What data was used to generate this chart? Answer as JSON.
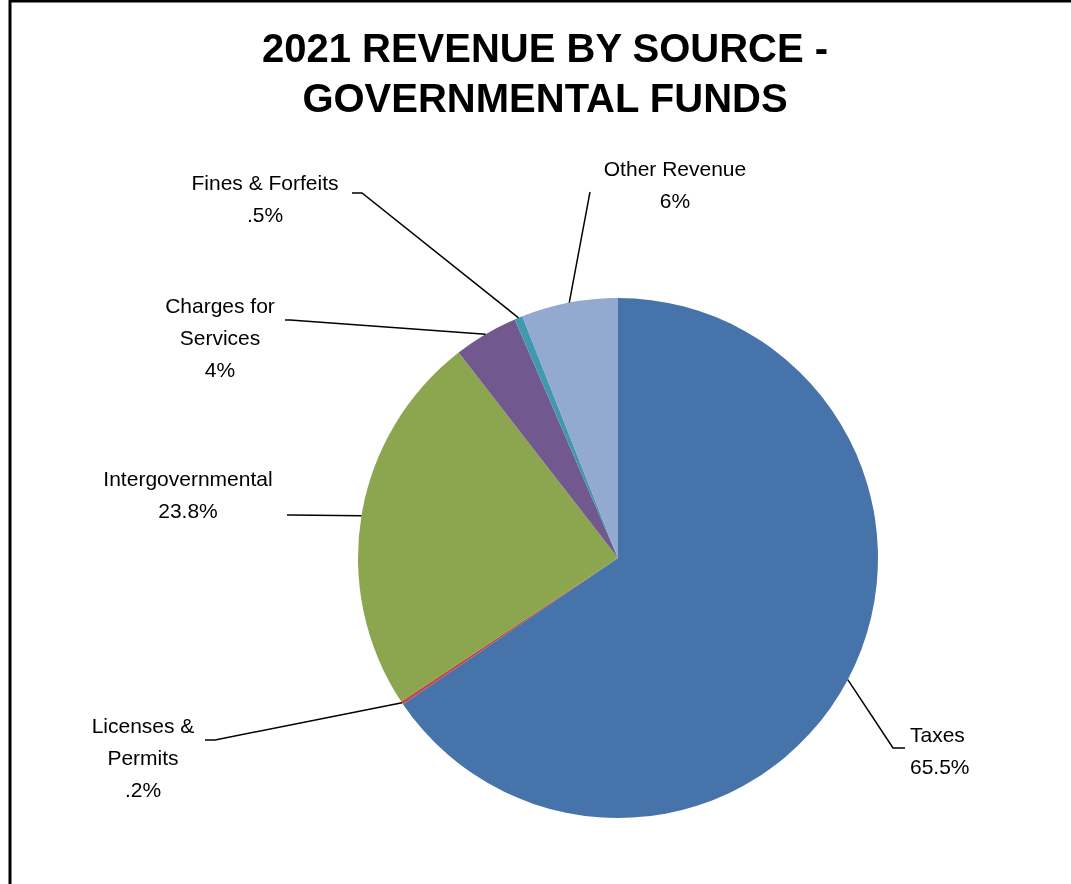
{
  "chart_data": {
    "type": "pie",
    "title": "2021 REVENUE BY SOURCE - GOVERNMENTAL FUNDS",
    "categories": [
      "Taxes",
      "Licenses & Permits",
      "Intergovernmental",
      "Charges for Services",
      "Fines & Forfeits",
      "Other Revenue"
    ],
    "values": [
      65.5,
      0.2,
      23.8,
      4,
      0.5,
      6
    ],
    "value_labels": [
      "65.5%",
      ".2%",
      "23.8%",
      "4%",
      ".5%",
      "6%"
    ],
    "colors": [
      "#4674aa",
      "#be4b48",
      "#8ba64f",
      "#71588f",
      "#4198af",
      "#93a9d0"
    ]
  }
}
